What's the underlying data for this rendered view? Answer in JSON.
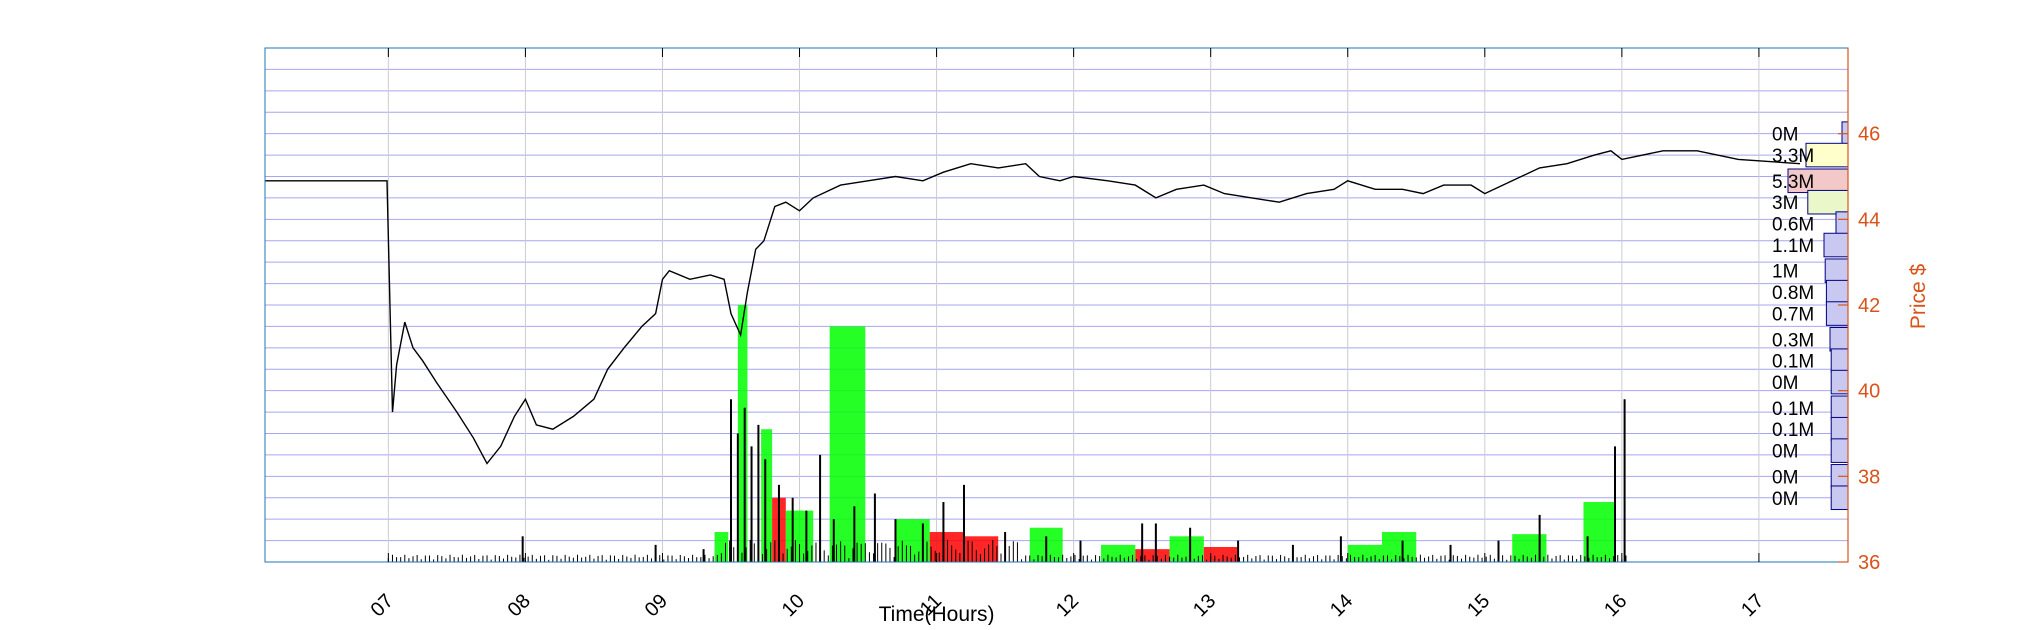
{
  "chart_data": {
    "type": "line",
    "title": "",
    "xlabel": "Time(Hours)",
    "ylabel": "Price $",
    "xlim": [
      6.1,
      17.65
    ],
    "ylim": [
      36,
      48
    ],
    "x_ticks": [
      7,
      8,
      9,
      10,
      11,
      12,
      13,
      14,
      15,
      16,
      17
    ],
    "x_tick_labels": [
      "07",
      "08",
      "09",
      "10",
      "11",
      "12",
      "13",
      "14",
      "15",
      "16",
      "17"
    ],
    "y_ticks": [
      36,
      38,
      40,
      42,
      44,
      46
    ],
    "y_tick_labels": [
      "36",
      "38",
      "40",
      "42",
      "44",
      "46"
    ],
    "grid": true,
    "colors": {
      "price_line": "#000000",
      "axis_right": "#d95319",
      "grid_h": "#8888ee",
      "grid_v": "#cccccc",
      "frame": "#1f77b4",
      "volume_up": "#00ff00",
      "volume_down": "#ff0000",
      "profile_blue": "#c8c8f0",
      "profile_yellow": "#ffffcc",
      "profile_pink": "#f2c8c8",
      "profile_green": "#eaf7c8"
    },
    "price_series": [
      {
        "x": 6.1,
        "y": 44.9
      },
      {
        "x": 6.99,
        "y": 44.9
      },
      {
        "x": 7.03,
        "y": 39.5
      },
      {
        "x": 7.06,
        "y": 40.6
      },
      {
        "x": 7.12,
        "y": 41.6
      },
      {
        "x": 7.18,
        "y": 41.0
      },
      {
        "x": 7.25,
        "y": 40.7
      },
      {
        "x": 7.35,
        "y": 40.2
      },
      {
        "x": 7.5,
        "y": 39.5
      },
      {
        "x": 7.62,
        "y": 38.9
      },
      {
        "x": 7.72,
        "y": 38.3
      },
      {
        "x": 7.82,
        "y": 38.7
      },
      {
        "x": 7.92,
        "y": 39.4
      },
      {
        "x": 8.0,
        "y": 39.8
      },
      {
        "x": 8.08,
        "y": 39.2
      },
      {
        "x": 8.2,
        "y": 39.1
      },
      {
        "x": 8.35,
        "y": 39.4
      },
      {
        "x": 8.5,
        "y": 39.8
      },
      {
        "x": 8.6,
        "y": 40.5
      },
      {
        "x": 8.72,
        "y": 41.0
      },
      {
        "x": 8.85,
        "y": 41.5
      },
      {
        "x": 8.95,
        "y": 41.8
      },
      {
        "x": 9.0,
        "y": 42.6
      },
      {
        "x": 9.05,
        "y": 42.8
      },
      {
        "x": 9.2,
        "y": 42.6
      },
      {
        "x": 9.35,
        "y": 42.7
      },
      {
        "x": 9.45,
        "y": 42.6
      },
      {
        "x": 9.5,
        "y": 41.8
      },
      {
        "x": 9.57,
        "y": 41.3
      },
      {
        "x": 9.62,
        "y": 42.3
      },
      {
        "x": 9.68,
        "y": 43.3
      },
      {
        "x": 9.74,
        "y": 43.5
      },
      {
        "x": 9.82,
        "y": 44.3
      },
      {
        "x": 9.9,
        "y": 44.4
      },
      {
        "x": 10.0,
        "y": 44.2
      },
      {
        "x": 10.1,
        "y": 44.5
      },
      {
        "x": 10.3,
        "y": 44.8
      },
      {
        "x": 10.5,
        "y": 44.9
      },
      {
        "x": 10.7,
        "y": 45.0
      },
      {
        "x": 10.9,
        "y": 44.9
      },
      {
        "x": 11.05,
        "y": 45.1
      },
      {
        "x": 11.25,
        "y": 45.3
      },
      {
        "x": 11.45,
        "y": 45.2
      },
      {
        "x": 11.65,
        "y": 45.3
      },
      {
        "x": 11.75,
        "y": 45.0
      },
      {
        "x": 11.9,
        "y": 44.9
      },
      {
        "x": 12.0,
        "y": 45.0
      },
      {
        "x": 12.25,
        "y": 44.9
      },
      {
        "x": 12.45,
        "y": 44.8
      },
      {
        "x": 12.6,
        "y": 44.5
      },
      {
        "x": 12.75,
        "y": 44.7
      },
      {
        "x": 12.95,
        "y": 44.8
      },
      {
        "x": 13.1,
        "y": 44.6
      },
      {
        "x": 13.3,
        "y": 44.5
      },
      {
        "x": 13.5,
        "y": 44.4
      },
      {
        "x": 13.7,
        "y": 44.6
      },
      {
        "x": 13.9,
        "y": 44.7
      },
      {
        "x": 14.0,
        "y": 44.9
      },
      {
        "x": 14.2,
        "y": 44.7
      },
      {
        "x": 14.4,
        "y": 44.7
      },
      {
        "x": 14.55,
        "y": 44.6
      },
      {
        "x": 14.7,
        "y": 44.8
      },
      {
        "x": 14.9,
        "y": 44.8
      },
      {
        "x": 15.0,
        "y": 44.6
      },
      {
        "x": 15.2,
        "y": 44.9
      },
      {
        "x": 15.4,
        "y": 45.2
      },
      {
        "x": 15.6,
        "y": 45.3
      },
      {
        "x": 15.8,
        "y": 45.5
      },
      {
        "x": 15.92,
        "y": 45.6
      },
      {
        "x": 16.0,
        "y": 45.4
      },
      {
        "x": 16.3,
        "y": 45.6
      },
      {
        "x": 16.55,
        "y": 45.6
      },
      {
        "x": 16.85,
        "y": 45.4
      },
      {
        "x": 17.3,
        "y": 45.3
      }
    ],
    "volume_profile": [
      {
        "label": "0M",
        "price": 46.0,
        "width": 0.04,
        "color": "blue"
      },
      {
        "label": "3.3M",
        "price": 45.5,
        "width": 0.7,
        "color": "yellow"
      },
      {
        "label": "5.3M",
        "price": 44.9,
        "width": 1.0,
        "color": "pink"
      },
      {
        "label": "3M",
        "price": 44.4,
        "width": 0.67,
        "color": "green"
      },
      {
        "label": "0.6M",
        "price": 43.9,
        "width": 0.2,
        "color": "blue"
      },
      {
        "label": "1.1M",
        "price": 43.4,
        "width": 0.4,
        "color": "blue"
      },
      {
        "label": "1M",
        "price": 42.8,
        "width": 0.38,
        "color": "blue"
      },
      {
        "label": "0.8M",
        "price": 42.3,
        "width": 0.36,
        "color": "blue"
      },
      {
        "label": "0.7M",
        "price": 41.8,
        "width": 0.36,
        "color": "blue"
      },
      {
        "label": "0.3M",
        "price": 41.2,
        "width": 0.3,
        "color": "blue"
      },
      {
        "label": "0.1M",
        "price": 40.7,
        "width": 0.28,
        "color": "blue"
      },
      {
        "label": "0M",
        "price": 40.2,
        "width": 0.28,
        "color": "blue"
      },
      {
        "label": "0.1M",
        "price": 39.6,
        "width": 0.28,
        "color": "blue"
      },
      {
        "label": "0.1M",
        "price": 39.1,
        "width": 0.28,
        "color": "blue"
      },
      {
        "label": "0M",
        "price": 38.6,
        "width": 0.28,
        "color": "blue"
      },
      {
        "label": "0M",
        "price": 38.0,
        "width": 0.28,
        "color": "blue"
      },
      {
        "label": "0M",
        "price": 37.5,
        "width": 0.28,
        "color": "blue"
      }
    ],
    "volume_blocks": [
      {
        "x0": 9.38,
        "x1": 9.48,
        "top": 36.7,
        "color": "green"
      },
      {
        "x0": 9.55,
        "x1": 9.62,
        "top": 42.0,
        "color": "green"
      },
      {
        "x0": 9.72,
        "x1": 9.8,
        "top": 39.1,
        "color": "green"
      },
      {
        "x0": 9.8,
        "x1": 9.9,
        "top": 37.5,
        "color": "red"
      },
      {
        "x0": 9.9,
        "x1": 10.1,
        "top": 37.2,
        "color": "green"
      },
      {
        "x0": 10.22,
        "x1": 10.48,
        "top": 41.5,
        "color": "green"
      },
      {
        "x0": 10.7,
        "x1": 10.95,
        "top": 37.0,
        "color": "green"
      },
      {
        "x0": 10.95,
        "x1": 11.2,
        "top": 36.7,
        "color": "red"
      },
      {
        "x0": 11.2,
        "x1": 11.45,
        "top": 36.6,
        "color": "red"
      },
      {
        "x0": 11.68,
        "x1": 11.92,
        "top": 36.8,
        "color": "green"
      },
      {
        "x0": 12.2,
        "x1": 12.45,
        "top": 36.4,
        "color": "green"
      },
      {
        "x0": 12.45,
        "x1": 12.7,
        "top": 36.3,
        "color": "red"
      },
      {
        "x0": 12.7,
        "x1": 12.95,
        "top": 36.6,
        "color": "green"
      },
      {
        "x0": 12.95,
        "x1": 13.2,
        "top": 36.35,
        "color": "red"
      },
      {
        "x0": 14.0,
        "x1": 14.25,
        "top": 36.4,
        "color": "green"
      },
      {
        "x0": 14.25,
        "x1": 14.5,
        "top": 36.7,
        "color": "green"
      },
      {
        "x0": 15.2,
        "x1": 15.45,
        "top": 36.65,
        "color": "green"
      },
      {
        "x0": 15.72,
        "x1": 15.95,
        "top": 37.4,
        "color": "green"
      }
    ],
    "volume_spikes": [
      {
        "x": 9.5,
        "y": 39.8
      },
      {
        "x": 9.55,
        "y": 39.0
      },
      {
        "x": 9.6,
        "y": 39.6
      },
      {
        "x": 9.65,
        "y": 38.7
      },
      {
        "x": 9.7,
        "y": 39.2
      },
      {
        "x": 9.75,
        "y": 38.4
      },
      {
        "x": 9.85,
        "y": 37.8
      },
      {
        "x": 9.95,
        "y": 37.5
      },
      {
        "x": 10.05,
        "y": 37.2
      },
      {
        "x": 10.15,
        "y": 38.5
      },
      {
        "x": 10.25,
        "y": 37.0
      },
      {
        "x": 10.4,
        "y": 37.3
      },
      {
        "x": 10.55,
        "y": 37.6
      },
      {
        "x": 10.7,
        "y": 37.0
      },
      {
        "x": 10.9,
        "y": 36.9
      },
      {
        "x": 11.05,
        "y": 37.4
      },
      {
        "x": 11.2,
        "y": 37.8
      },
      {
        "x": 11.5,
        "y": 36.7
      },
      {
        "x": 11.8,
        "y": 36.6
      },
      {
        "x": 12.05,
        "y": 36.5
      },
      {
        "x": 12.5,
        "y": 36.9
      },
      {
        "x": 12.6,
        "y": 36.9
      },
      {
        "x": 12.85,
        "y": 36.8
      },
      {
        "x": 13.2,
        "y": 36.5
      },
      {
        "x": 13.6,
        "y": 36.4
      },
      {
        "x": 13.95,
        "y": 36.6
      },
      {
        "x": 14.4,
        "y": 36.5
      },
      {
        "x": 14.75,
        "y": 36.4
      },
      {
        "x": 15.1,
        "y": 36.5
      },
      {
        "x": 15.4,
        "y": 37.1
      },
      {
        "x": 15.75,
        "y": 36.6
      },
      {
        "x": 15.95,
        "y": 38.7
      },
      {
        "x": 16.02,
        "y": 39.8
      },
      {
        "x": 7.98,
        "y": 36.6
      },
      {
        "x": 8.95,
        "y": 36.4
      },
      {
        "x": 9.3,
        "y": 36.3
      }
    ]
  }
}
